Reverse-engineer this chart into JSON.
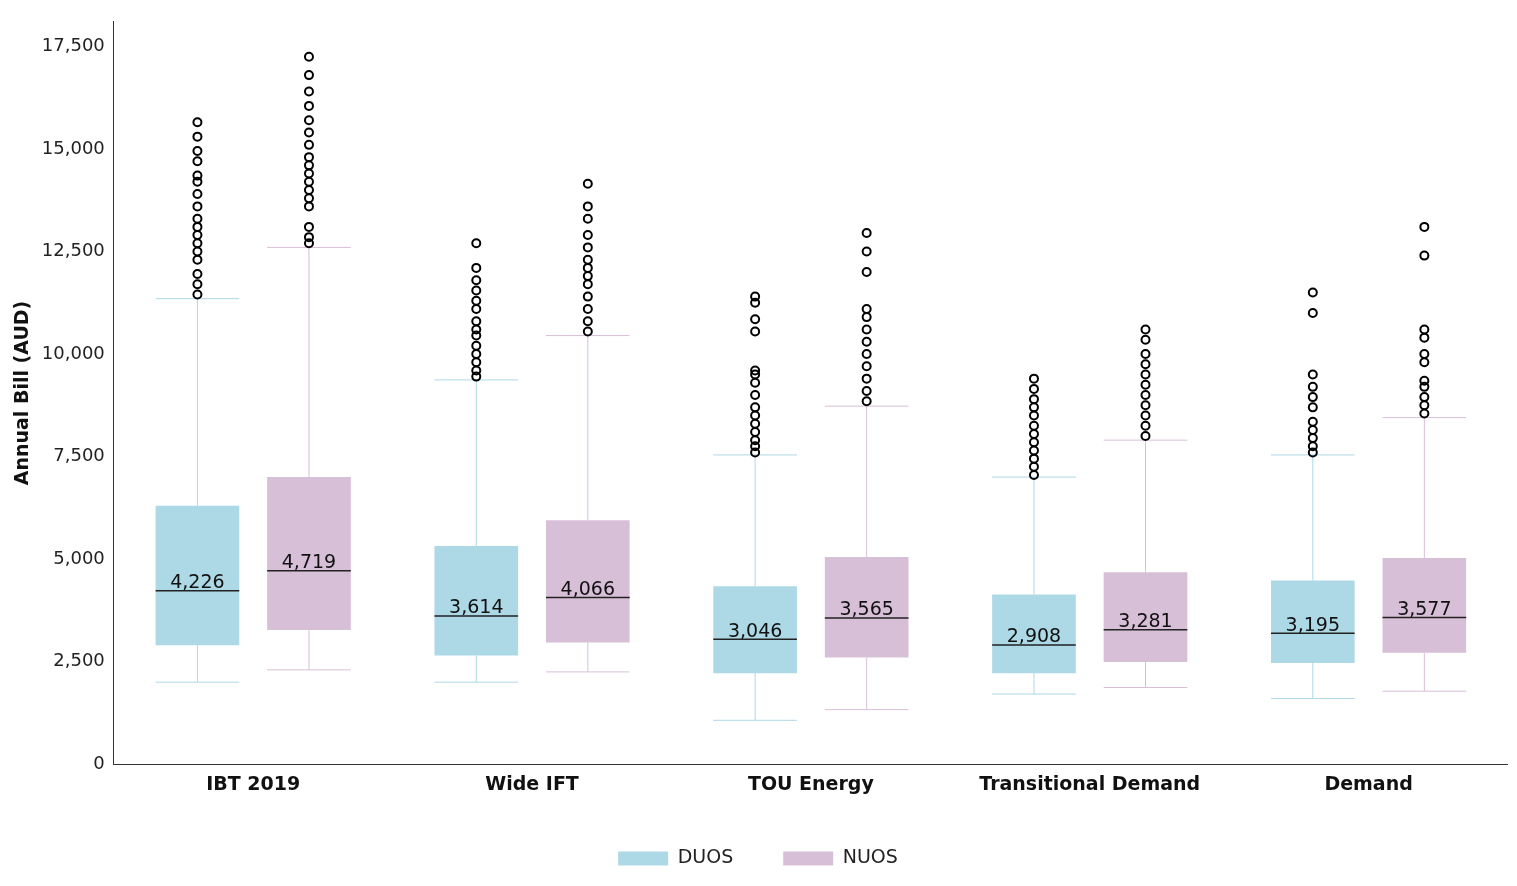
{
  "chart_data": {
    "type": "box",
    "ylabel": "Annual Bill (AUD)",
    "categories": [
      "IBT 2019",
      "Wide IFT",
      "TOU Energy",
      "Transitional Demand",
      "Demand"
    ],
    "ylim": [
      0,
      18100
    ],
    "yticks": [
      0,
      {
        "value": 2500,
        "label": "2,500"
      },
      {
        "value": 5000,
        "label": "5,000"
      },
      {
        "value": 7500,
        "label": "7,500"
      },
      {
        "value": 10000,
        "label": "10,000"
      },
      {
        "value": 12500,
        "label": "12,500"
      },
      {
        "value": 15000,
        "label": "15,000"
      },
      {
        "value": 17500,
        "label": "17,500"
      }
    ],
    "grid": false,
    "legend": "bottom",
    "marker": "circle",
    "series": [
      {
        "name": "DUOS",
        "color": "#add8e6",
        "value_labels": [
          "4,226",
          "3,614",
          "3,046",
          "2,908",
          "3,195"
        ],
        "boxes": [
          {
            "low": 2000,
            "q1": 2900,
            "median": 4226,
            "q3": 6300,
            "high": 11350,
            "outliers": [
              11450,
              11700,
              11950,
              12300,
              12500,
              12700,
              12900,
              13100,
              13300,
              13600,
              13900,
              14200,
              14350,
              14700,
              14950,
              15300,
              15650
            ]
          },
          {
            "low": 2000,
            "q1": 2650,
            "median": 3614,
            "q3": 5320,
            "high": 9370,
            "outliers": [
              9450,
              9600,
              9800,
              10000,
              10200,
              10450,
              10600,
              10800,
              11100,
              11300,
              11550,
              11800,
              12100,
              12700
            ]
          },
          {
            "low": 1070,
            "q1": 2220,
            "median": 3046,
            "q3": 4340,
            "high": 7540,
            "outliers": [
              7600,
              7750,
              7900,
              8100,
              8300,
              8500,
              8700,
              9000,
              9300,
              9500,
              9600,
              10550,
              10850,
              11250,
              11400
            ]
          },
          {
            "low": 1710,
            "q1": 2220,
            "median": 2908,
            "q3": 4140,
            "high": 7000,
            "outliers": [
              7050,
              7250,
              7450,
              7650,
              7850,
              8050,
              8250,
              8500,
              8700,
              8900,
              9150,
              9400
            ]
          },
          {
            "low": 1600,
            "q1": 2470,
            "median": 3195,
            "q3": 4480,
            "high": 7540,
            "outliers": [
              7600,
              7750,
              7950,
              8150,
              8350,
              8700,
              8950,
              9200,
              9500,
              11000,
              11500
            ]
          }
        ]
      },
      {
        "name": "NUOS",
        "color": "#d8bfd8",
        "value_labels": [
          "4,719",
          "4,066",
          "3,565",
          "3,281",
          "3,577"
        ],
        "boxes": [
          {
            "low": 2300,
            "q1": 3270,
            "median": 4719,
            "q3": 7000,
            "high": 12600,
            "outliers": [
              12700,
              12850,
              13100,
              13600,
              13800,
              14000,
              14200,
              14400,
              14600,
              14800,
              15100,
              15400,
              15700,
              16050,
              16400,
              16800,
              17250
            ]
          },
          {
            "low": 2250,
            "q1": 2970,
            "median": 4066,
            "q3": 5950,
            "high": 10450,
            "outliers": [
              10550,
              10800,
              11100,
              11400,
              11700,
              11900,
              12100,
              12300,
              12600,
              12900,
              13300,
              13600,
              14150
            ]
          },
          {
            "low": 1330,
            "q1": 2600,
            "median": 3565,
            "q3": 5050,
            "high": 8730,
            "outliers": [
              8850,
              9100,
              9400,
              9700,
              10000,
              10300,
              10600,
              10900,
              11100,
              12000,
              12500,
              12950
            ]
          },
          {
            "low": 1870,
            "q1": 2490,
            "median": 3281,
            "q3": 4680,
            "high": 7900,
            "outliers": [
              8000,
              8250,
              8500,
              8750,
              9000,
              9250,
              9500,
              9750,
              10000,
              10350,
              10600
            ]
          },
          {
            "low": 1780,
            "q1": 2720,
            "median": 3577,
            "q3": 5030,
            "high": 8450,
            "outliers": [
              8550,
              8750,
              8950,
              9200,
              9350,
              9800,
              10000,
              10400,
              10600,
              12400,
              13100
            ]
          }
        ]
      }
    ]
  }
}
